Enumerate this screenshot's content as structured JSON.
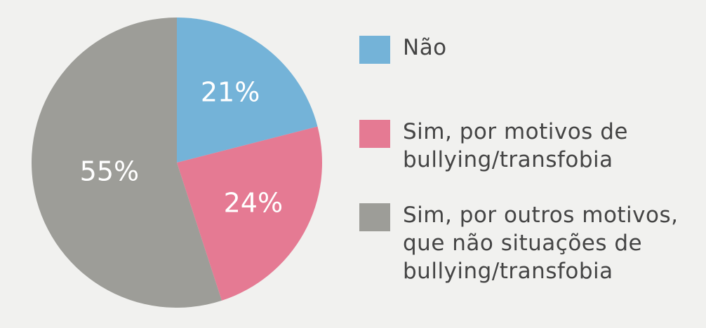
{
  "chart_data": {
    "type": "pie",
    "categories": [
      "Não",
      "Sim, por motivos de\nbullying/transfobia",
      "Sim, por outros motivos,\nque não situações de\nbullying/transfobia"
    ],
    "values": [
      21,
      24,
      55
    ],
    "value_labels": [
      "21%",
      "24%",
      "55%"
    ],
    "colors": [
      "#74b3d8",
      "#e57a93",
      "#9d9d98"
    ],
    "legend": "right"
  }
}
